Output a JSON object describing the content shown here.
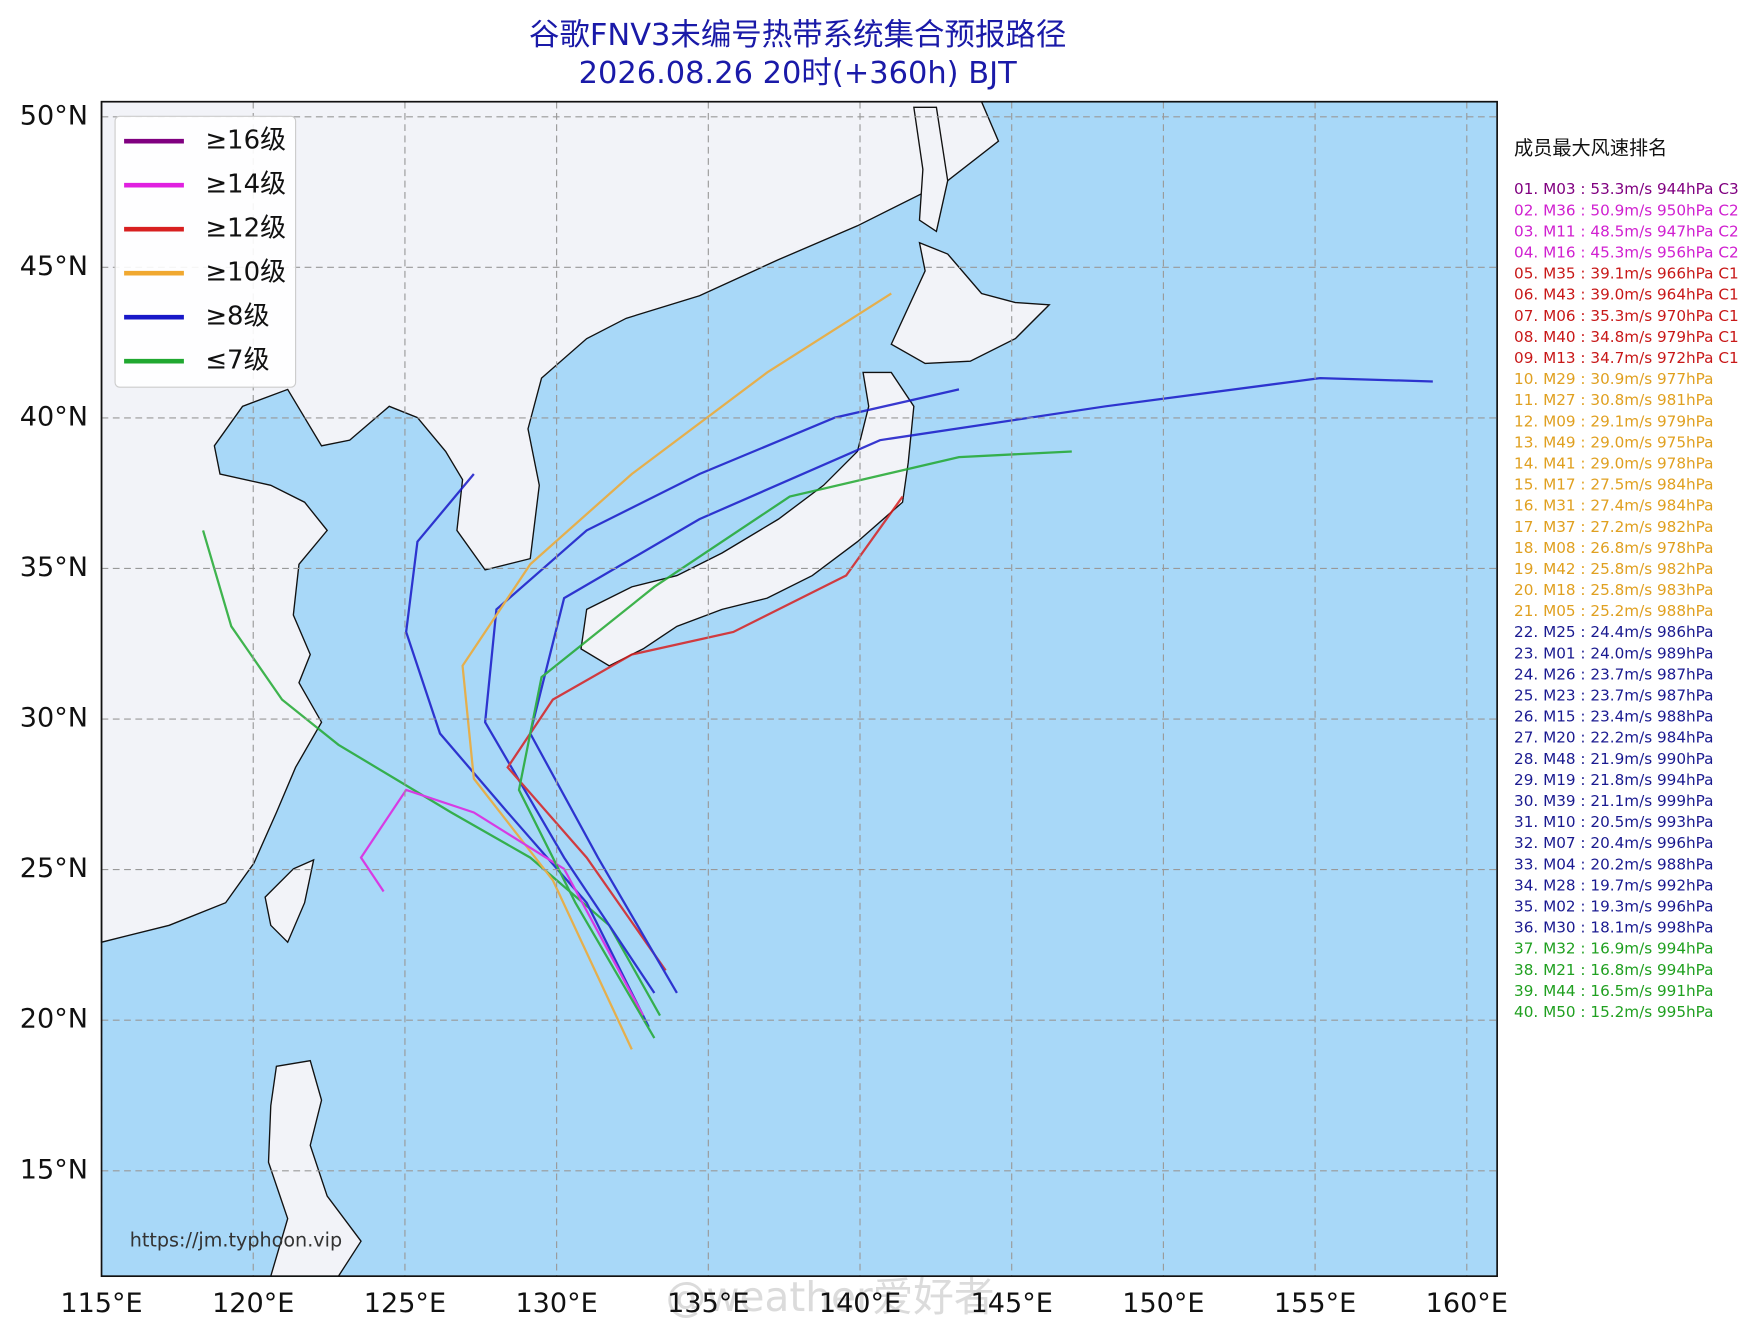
{
  "title": [
    "谷歌FNV3未编号热带系统集合预报路径",
    "2026.08.26 20时(+360h) BJT"
  ],
  "map": {
    "xlim": [
      115,
      161
    ],
    "ylim": [
      11.5,
      50.5
    ],
    "xticks": [
      {
        "value": 115,
        "label": "115°E"
      },
      {
        "value": 120,
        "label": "120°E"
      },
      {
        "value": 125,
        "label": "125°E"
      },
      {
        "value": 130,
        "label": "130°E"
      },
      {
        "value": 135,
        "label": "135°E"
      },
      {
        "value": 140,
        "label": "140°E"
      },
      {
        "value": 145,
        "label": "145°E"
      },
      {
        "value": 150,
        "label": "150°E"
      },
      {
        "value": 155,
        "label": "155°E"
      },
      {
        "value": 160,
        "label": "160°E"
      }
    ],
    "yticks": [
      {
        "value": 15,
        "label": "15°N"
      },
      {
        "value": 20,
        "label": "20°N"
      },
      {
        "value": 25,
        "label": "25°N"
      },
      {
        "value": 30,
        "label": "30°N"
      },
      {
        "value": 35,
        "label": "35°N"
      },
      {
        "value": 40,
        "label": "40°N"
      },
      {
        "value": 45,
        "label": "45°N"
      },
      {
        "value": 50,
        "label": "50°N"
      }
    ],
    "grid": true
  },
  "legend": [
    {
      "label": "≥16级",
      "color": "#800080"
    },
    {
      "label": "≥14级",
      "color": "#e020e0"
    },
    {
      "label": "≥12级",
      "color": "#d82020"
    },
    {
      "label": "≥10级",
      "color": "#f0a830"
    },
    {
      "label": "≥8级",
      "color": "#1818c8"
    },
    {
      "label": "≤7级",
      "color": "#20a830"
    }
  ],
  "ranking": {
    "title": "成员最大风速排名",
    "items": [
      {
        "text": "01. M03 : 53.3m/s 944hPa C3",
        "color": "#800080"
      },
      {
        "text": "02. M36 : 50.9m/s 950hPa C2",
        "color": "#d020d0"
      },
      {
        "text": "03. M11 : 48.5m/s 947hPa C2",
        "color": "#d020d0"
      },
      {
        "text": "04. M16 : 45.3m/s 956hPa C2",
        "color": "#d020d0"
      },
      {
        "text": "05. M35 : 39.1m/s 966hPa C1",
        "color": "#c81818"
      },
      {
        "text": "06. M43 : 39.0m/s 964hPa C1",
        "color": "#c81818"
      },
      {
        "text": "07. M06 : 35.3m/s 970hPa C1",
        "color": "#c81818"
      },
      {
        "text": "08. M40 : 34.8m/s 979hPa C1",
        "color": "#c81818"
      },
      {
        "text": "09. M13 : 34.7m/s 972hPa C1",
        "color": "#c81818"
      },
      {
        "text": "10. M29 : 30.9m/s 977hPa",
        "color": "#e0a020"
      },
      {
        "text": "11. M27 : 30.8m/s 981hPa",
        "color": "#e0a020"
      },
      {
        "text": "12. M09 : 29.1m/s 979hPa",
        "color": "#e0a020"
      },
      {
        "text": "13. M49 : 29.0m/s 975hPa",
        "color": "#e0a020"
      },
      {
        "text": "14. M41 : 29.0m/s 978hPa",
        "color": "#e0a020"
      },
      {
        "text": "15. M17 : 27.5m/s 984hPa",
        "color": "#e0a020"
      },
      {
        "text": "16. M31 : 27.4m/s 984hPa",
        "color": "#e0a020"
      },
      {
        "text": "17. M37 : 27.2m/s 982hPa",
        "color": "#e0a020"
      },
      {
        "text": "18. M08 : 26.8m/s 978hPa",
        "color": "#e0a020"
      },
      {
        "text": "19. M42 : 25.8m/s 982hPa",
        "color": "#e0a020"
      },
      {
        "text": "20. M18 : 25.8m/s 983hPa",
        "color": "#e0a020"
      },
      {
        "text": "21. M05 : 25.2m/s 988hPa",
        "color": "#e0a020"
      },
      {
        "text": "22. M25 : 24.4m/s 986hPa",
        "color": "#1a1a90"
      },
      {
        "text": "23. M01 : 24.0m/s 989hPa",
        "color": "#1a1a90"
      },
      {
        "text": "24. M26 : 23.7m/s 987hPa",
        "color": "#1a1a90"
      },
      {
        "text": "25. M23 : 23.7m/s 987hPa",
        "color": "#1a1a90"
      },
      {
        "text": "26. M15 : 23.4m/s 988hPa",
        "color": "#1a1a90"
      },
      {
        "text": "27. M20 : 22.2m/s 984hPa",
        "color": "#1a1a90"
      },
      {
        "text": "28. M48 : 21.9m/s 990hPa",
        "color": "#1a1a90"
      },
      {
        "text": "29. M19 : 21.8m/s 994hPa",
        "color": "#1a1a90"
      },
      {
        "text": "30. M39 : 21.1m/s 999hPa",
        "color": "#1a1a90"
      },
      {
        "text": "31. M10 : 20.5m/s 993hPa",
        "color": "#1a1a90"
      },
      {
        "text": "32. M07 : 20.4m/s 996hPa",
        "color": "#1a1a90"
      },
      {
        "text": "33. M04 : 20.2m/s 988hPa",
        "color": "#1a1a90"
      },
      {
        "text": "34. M28 : 19.7m/s 992hPa",
        "color": "#1a1a90"
      },
      {
        "text": "35. M02 : 19.3m/s 996hPa",
        "color": "#1a1a90"
      },
      {
        "text": "36. M30 : 18.1m/s 998hPa",
        "color": "#1a1a90"
      },
      {
        "text": "37. M32 : 16.9m/s 994hPa",
        "color": "#20a020"
      },
      {
        "text": "38. M21 : 16.8m/s 994hPa",
        "color": "#20a020"
      },
      {
        "text": "39. M44 : 16.5m/s 991hPa",
        "color": "#20a020"
      },
      {
        "text": "40. M50 : 15.2m/s 995hPa",
        "color": "#20a020"
      }
    ]
  },
  "source": "https://jm.typhoon.vip",
  "watermark": "@weather爱好者"
}
